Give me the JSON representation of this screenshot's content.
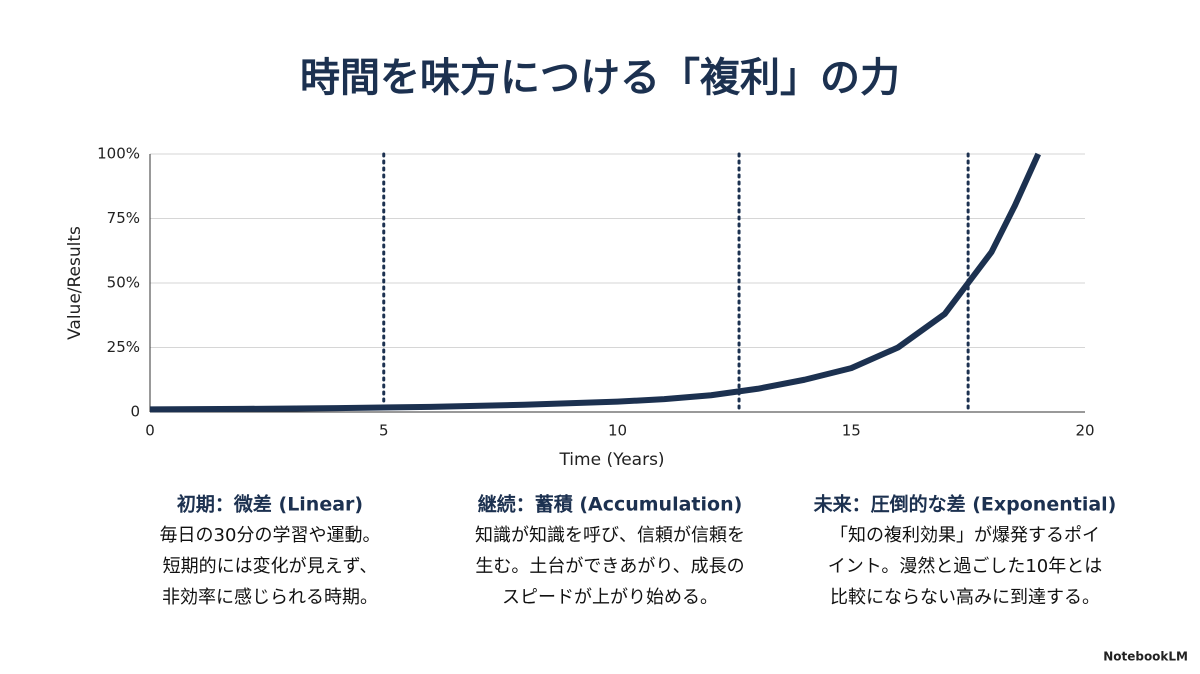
{
  "chart_data": {
    "type": "line",
    "title": "時間を味方につける「複利」の力",
    "xlabel": "Time (Years)",
    "ylabel": "Value/Results",
    "x": [
      0,
      2,
      4,
      6,
      8,
      10,
      11,
      12,
      13,
      14,
      15,
      16,
      17,
      17.5,
      18,
      18.5,
      19
    ],
    "series": [
      {
        "color": "#1c3150",
        "values": [
          1,
          1.2,
          1.5,
          2,
          2.8,
          4,
          5,
          6.5,
          9,
          12.5,
          17,
          25,
          38,
          50,
          62,
          80,
          100
        ]
      }
    ],
    "vlines": [
      5,
      12.6,
      17.5
    ],
    "xlim": [
      0,
      20
    ],
    "xticks": [
      0,
      5,
      10,
      15,
      20
    ],
    "ylim": [
      0,
      100
    ],
    "yticks": [
      0,
      {
        "value": 25,
        "label": "25%"
      },
      {
        "value": 50,
        "label": "50%"
      },
      {
        "value": 75,
        "label": "75%"
      },
      {
        "value": 100,
        "label": "100%"
      }
    ],
    "grid": true
  },
  "sections": [
    {
      "heading": "初期：微差 (Linear)",
      "lines": [
        "毎日の30分の学習や運動。",
        "短期的には変化が見えず、",
        "非効率に感じられる時期。"
      ]
    },
    {
      "heading": "継続：蓄積 (Accumulation)",
      "lines": [
        "知識が知識を呼び、信頼が信頼を",
        "生む。土台ができあがり、成長の",
        "スピードが上がり始める。"
      ]
    },
    {
      "heading": "未来：圧倒的な差 (Exponential)",
      "lines": [
        "「知の複利効果」が爆発するポイ",
        "イント。漫然と過ごした10年とは",
        "比較にならない高みに到達する。"
      ]
    }
  ],
  "footer": "NotebookLM"
}
